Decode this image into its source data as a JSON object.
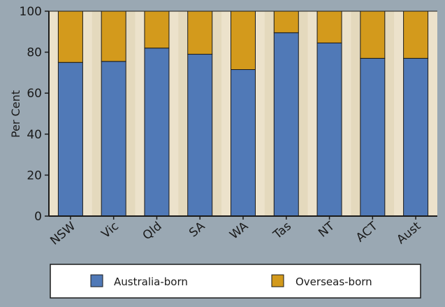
{
  "chart_data": {
    "type": "bar",
    "stacked": true,
    "categories": [
      "NSW",
      "Vic",
      "Qld",
      "SA",
      "WA",
      "Tas",
      "NT",
      "ACT",
      "Aust"
    ],
    "series": [
      {
        "name": "Australia-born",
        "values": [
          75,
          75.5,
          82,
          79,
          71.5,
          89.5,
          84.5,
          77,
          77
        ],
        "color": "#5079b7"
      },
      {
        "name": "Overseas-born",
        "values": [
          25,
          24.5,
          18,
          21,
          28.5,
          10.5,
          15.5,
          23,
          23
        ],
        "color": "#d39a1c"
      }
    ],
    "xlabel": "",
    "ylabel": "Per Cent",
    "ylim": [
      0,
      100
    ],
    "yticks": [
      "0",
      "20",
      "40",
      "60",
      "80",
      "100"
    ],
    "grid": false,
    "legend": "bottom",
    "colors": {
      "page_background": "#9aa8b3",
      "band_even": "#ece2cb",
      "band_odd": "#e4d9bd",
      "axis": "#1a1a1a"
    }
  }
}
